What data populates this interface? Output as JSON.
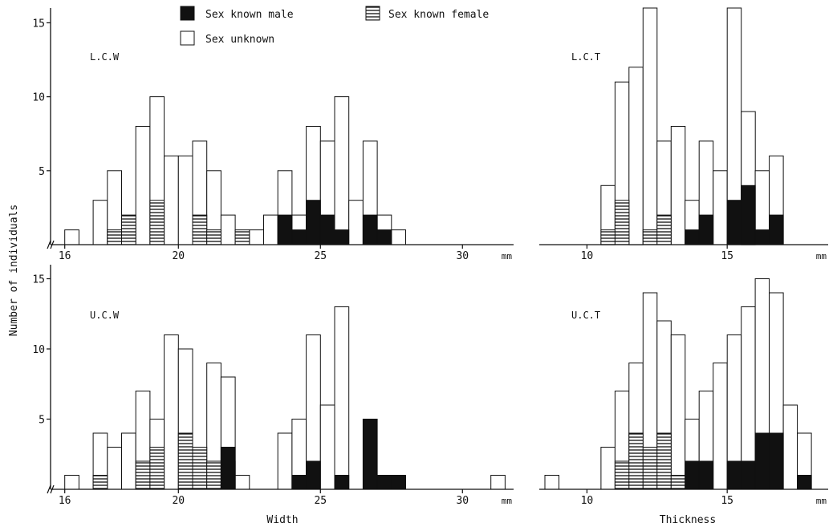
{
  "figure": {
    "ylabel": "Number of individuals",
    "legend": {
      "male": "Sex known male",
      "female": "Sex known female",
      "unknown": "Sex unknown"
    }
  },
  "chart_data": [
    {
      "type": "bar",
      "panel_label": "L.C.W",
      "xlabel": "",
      "unit": "mm",
      "xlim": [
        15.5,
        31.8
      ],
      "ylim": [
        0,
        16
      ],
      "xticks": [
        16,
        20,
        25,
        30
      ],
      "yticks": [
        5,
        10,
        15
      ],
      "bin_width": 0.5,
      "series": [
        {
          "key": "unknown",
          "bins": [
            [
              16.0,
              1.0
            ],
            [
              17.0,
              3.0
            ],
            [
              17.5,
              5.0
            ],
            [
              18.5,
              8.0
            ],
            [
              19.0,
              10.0
            ],
            [
              19.5,
              6.0
            ],
            [
              20.0,
              6.0
            ],
            [
              20.5,
              7.0
            ],
            [
              21.0,
              5.0
            ],
            [
              21.5,
              2.0
            ],
            [
              22.5,
              1.0
            ],
            [
              23.0,
              2.0
            ],
            [
              23.5,
              5.0
            ],
            [
              24.0,
              2.0
            ],
            [
              24.5,
              8.0
            ],
            [
              25.0,
              7.0
            ],
            [
              25.5,
              10.0
            ],
            [
              26.0,
              3.0
            ],
            [
              26.5,
              7.0
            ],
            [
              27.0,
              2.0
            ],
            [
              27.5,
              1.0
            ]
          ]
        },
        {
          "key": "female",
          "bins": [
            [
              17.5,
              1.0
            ],
            [
              18.0,
              2.0
            ],
            [
              19.0,
              3.0
            ],
            [
              20.5,
              2.0
            ],
            [
              21.0,
              1.0
            ],
            [
              22.0,
              1.0
            ]
          ]
        },
        {
          "key": "male",
          "bins": [
            [
              23.5,
              2.0
            ],
            [
              24.0,
              1.0
            ],
            [
              24.5,
              3.0
            ],
            [
              25.0,
              2.0
            ],
            [
              25.5,
              1.0
            ],
            [
              26.5,
              2.0
            ],
            [
              27.0,
              1.0
            ]
          ]
        }
      ]
    },
    {
      "type": "bar",
      "panel_label": "L.C.T",
      "xlabel": "",
      "unit": "mm",
      "xlim": [
        8.3,
        18.6
      ],
      "ylim": [
        0,
        16
      ],
      "xticks": [
        10,
        15
      ],
      "yticks": [],
      "bin_width": 0.5,
      "series": [
        {
          "key": "unknown",
          "bins": [
            [
              10.5,
              4.0
            ],
            [
              11.0,
              11.0
            ],
            [
              11.5,
              12.0
            ],
            [
              12.0,
              16.0
            ],
            [
              12.5,
              7.0
            ],
            [
              13.0,
              8.0
            ],
            [
              13.5,
              3.0
            ],
            [
              14.0,
              7.0
            ],
            [
              14.5,
              5.0
            ],
            [
              15.0,
              16.0
            ],
            [
              15.5,
              9.0
            ],
            [
              16.0,
              5.0
            ],
            [
              16.5,
              6.0
            ]
          ]
        },
        {
          "key": "female",
          "bins": [
            [
              10.5,
              1.0
            ],
            [
              11.0,
              3.0
            ],
            [
              12.0,
              1.0
            ],
            [
              12.5,
              2.0
            ]
          ]
        },
        {
          "key": "male",
          "bins": [
            [
              13.5,
              1.0
            ],
            [
              14.0,
              2.0
            ],
            [
              15.0,
              3.0
            ],
            [
              15.5,
              4.0
            ],
            [
              16.0,
              1.0
            ],
            [
              16.5,
              2.0
            ]
          ]
        }
      ]
    },
    {
      "type": "bar",
      "panel_label": "U.C.W",
      "xlabel": "Width",
      "unit": "mm",
      "xlim": [
        15.5,
        31.8
      ],
      "ylim": [
        0,
        16
      ],
      "xticks": [
        16,
        20,
        25,
        30
      ],
      "yticks": [
        5,
        10,
        15
      ],
      "bin_width": 0.5,
      "series": [
        {
          "key": "unknown",
          "bins": [
            [
              16.0,
              1.0
            ],
            [
              17.0,
              4.0
            ],
            [
              17.5,
              3.0
            ],
            [
              18.0,
              4.0
            ],
            [
              18.5,
              7.0
            ],
            [
              19.0,
              5.0
            ],
            [
              19.5,
              11.0
            ],
            [
              20.0,
              10.0
            ],
            [
              21.0,
              9.0
            ],
            [
              21.5,
              8.0
            ],
            [
              22.0,
              1.0
            ],
            [
              23.5,
              4.0
            ],
            [
              24.0,
              5.0
            ],
            [
              24.5,
              11.0
            ],
            [
              25.0,
              6.0
            ],
            [
              25.5,
              13.0
            ],
            [
              31.0,
              1.0
            ]
          ]
        },
        {
          "key": "female",
          "bins": [
            [
              17.0,
              1.0
            ],
            [
              18.5,
              2.0
            ],
            [
              19.0,
              3.0
            ],
            [
              20.0,
              4.0
            ],
            [
              20.5,
              3.0
            ],
            [
              21.0,
              2.0
            ],
            [
              21.5,
              2.0
            ]
          ]
        },
        {
          "key": "male",
          "bins": [
            [
              21.5,
              3.0
            ],
            [
              24.0,
              1.0
            ],
            [
              24.5,
              2.0
            ],
            [
              25.5,
              1.0
            ],
            [
              26.5,
              5.0
            ],
            [
              27.0,
              1.0
            ],
            [
              27.5,
              1.0
            ]
          ]
        }
      ]
    },
    {
      "type": "bar",
      "panel_label": "U.C.T",
      "xlabel": "Thickness",
      "unit": "mm",
      "xlim": [
        8.3,
        18.6
      ],
      "ylim": [
        0,
        16
      ],
      "xticks": [
        10,
        15
      ],
      "yticks": [],
      "bin_width": 0.5,
      "series": [
        {
          "key": "unknown",
          "bins": [
            [
              8.5,
              1.0
            ],
            [
              10.5,
              3.0
            ],
            [
              11.0,
              7.0
            ],
            [
              11.5,
              9.0
            ],
            [
              12.0,
              14.0
            ],
            [
              12.5,
              12.0
            ],
            [
              13.0,
              11.0
            ],
            [
              13.5,
              5.0
            ],
            [
              14.0,
              7.0
            ],
            [
              14.5,
              9.0
            ],
            [
              15.0,
              11.0
            ],
            [
              15.5,
              13.0
            ],
            [
              16.0,
              15.0
            ],
            [
              16.5,
              14.0
            ],
            [
              17.0,
              6.0
            ],
            [
              17.5,
              4.0
            ]
          ]
        },
        {
          "key": "female",
          "bins": [
            [
              11.0,
              2.0
            ],
            [
              11.5,
              4.0
            ],
            [
              12.0,
              3.0
            ],
            [
              12.5,
              4.0
            ],
            [
              13.0,
              1.0
            ]
          ]
        },
        {
          "key": "male",
          "bins": [
            [
              13.5,
              2.0
            ],
            [
              14.0,
              2.0
            ],
            [
              15.0,
              2.0
            ],
            [
              15.5,
              2.0
            ],
            [
              16.0,
              4.0
            ],
            [
              16.5,
              4.0
            ],
            [
              17.5,
              1.0
            ]
          ]
        }
      ]
    }
  ]
}
